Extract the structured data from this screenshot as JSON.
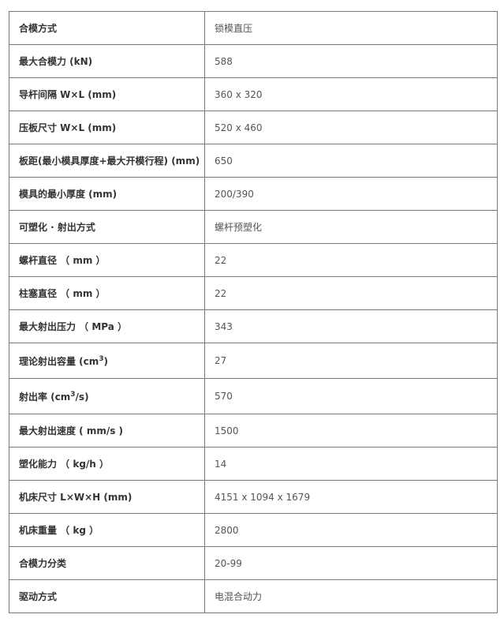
{
  "rows": [
    {
      "label": "合模方式",
      "value": "锁模直压"
    },
    {
      "label": "最大合模力 (kN)",
      "value": "588"
    },
    {
      "label": "导杆间隔 W×L (mm)",
      "value": "360 x 320"
    },
    {
      "label": "压板尺寸 W×L (mm)",
      "value": "520 x 460"
    },
    {
      "label": "板距(最小模具厚度+最大开模行程) (mm)",
      "value": "650"
    },
    {
      "label": "模具的最小厚度 (mm)",
      "value": "200/390"
    },
    {
      "label": "可塑化 · 射出方式",
      "value": "螺杆预塑化"
    },
    {
      "label": "螺杆直径 （ mm ）",
      "value": "22"
    },
    {
      "label": "柱塞直径 （ mm ）",
      "value": "22"
    },
    {
      "label": "最大射出压力 （ MPa ）",
      "value": "343"
    },
    {
      "label": "理论射出容量 (cm",
      "sup": "3",
      "suffix": ")",
      "value": "27"
    },
    {
      "label": "射出率 (cm",
      "sup": "3",
      "suffix": "/s)",
      "value": "570"
    },
    {
      "label": "最大射出速度 ( mm/s )",
      "value": "1500"
    },
    {
      "label": "塑化能力 （ kg/h ）",
      "value": "14"
    },
    {
      "label": "机床尺寸 L×W×H (mm)",
      "value": "4151 x 1094 x 1679"
    },
    {
      "label": "机床重量 （ kg ）",
      "value": "2800"
    },
    {
      "label": "合模力分类",
      "value": "20-99"
    },
    {
      "label": "驱动方式",
      "value": "电混合动力"
    }
  ]
}
